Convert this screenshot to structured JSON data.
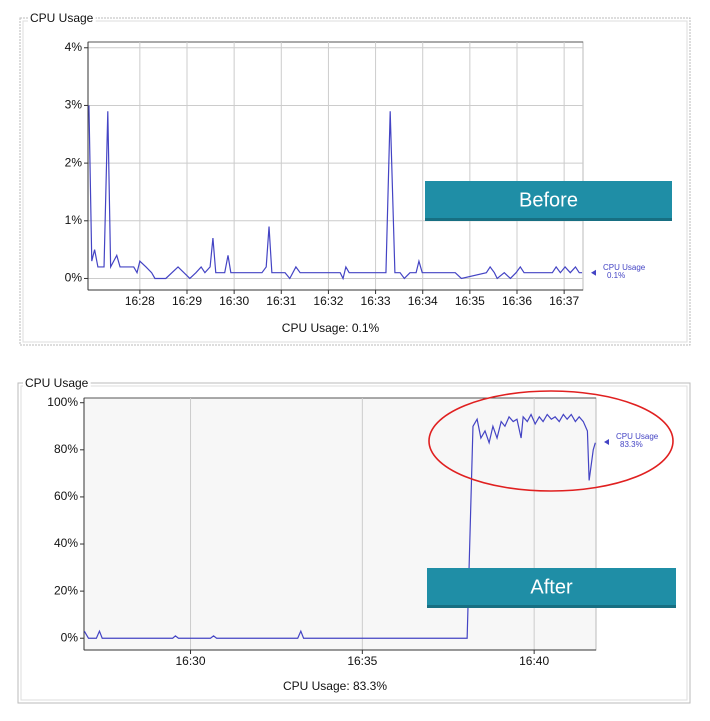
{
  "chart_data": [
    {
      "type": "line",
      "title": "CPU Usage",
      "caption": "CPU Usage: 0.1%",
      "annotation": "Before",
      "x": [
        986.92,
        986.98,
        987.04,
        987.11,
        987.24,
        987.32,
        987.38,
        987.51,
        987.58,
        987.87,
        987.94,
        988.0,
        988.13,
        988.25,
        988.32,
        988.55,
        988.81,
        989.06,
        989.19,
        989.3,
        989.38,
        989.49,
        989.55,
        989.61,
        989.8,
        989.87,
        989.93,
        990.59,
        990.68,
        990.74,
        990.8,
        991.08,
        991.18,
        991.31,
        991.4,
        992.25,
        992.31,
        992.37,
        992.44,
        993.22,
        993.31,
        993.41,
        993.52,
        993.61,
        993.73,
        993.86,
        993.92,
        993.99,
        994.69,
        994.82,
        995.35,
        995.43,
        995.52,
        995.58,
        995.73,
        995.86,
        995.98,
        996.07,
        996.15,
        996.75,
        996.83,
        996.92,
        997.02,
        997.13,
        997.24,
        997.32,
        997.38
      ],
      "series": [
        {
          "name": "CPU Usage",
          "color": "#4444c4",
          "values": [
            3.0,
            0.3,
            0.5,
            0.2,
            0.2,
            2.9,
            0.2,
            0.4,
            0.2,
            0.2,
            0.1,
            0.3,
            0.2,
            0.1,
            0,
            0,
            0.2,
            0,
            0.1,
            0.2,
            0.1,
            0.2,
            0.7,
            0.1,
            0.1,
            0.4,
            0.1,
            0.1,
            0.2,
            0.9,
            0.1,
            0.1,
            0,
            0.2,
            0.1,
            0.1,
            0,
            0.2,
            0.1,
            0.1,
            2.9,
            0.1,
            0.1,
            0,
            0.1,
            0.1,
            0.3,
            0.1,
            0.1,
            0,
            0.1,
            0.2,
            0.1,
            0,
            0.1,
            0,
            0.1,
            0.2,
            0.1,
            0.1,
            0.2,
            0.1,
            0.2,
            0.1,
            0.2,
            0.1,
            0.1
          ]
        }
      ],
      "current": {
        "value": 0.1,
        "label": "0.1%"
      },
      "xlim": [
        986.9,
        997.4
      ],
      "ylim": [
        -0.2,
        4.1
      ],
      "xticks": [
        {
          "value": 988,
          "label": "16:28"
        },
        {
          "value": 989,
          "label": "16:29"
        },
        {
          "value": 990,
          "label": "16:30"
        },
        {
          "value": 991,
          "label": "16:31"
        },
        {
          "value": 992,
          "label": "16:32"
        },
        {
          "value": 993,
          "label": "16:33"
        },
        {
          "value": 994,
          "label": "16:34"
        },
        {
          "value": 995,
          "label": "16:35"
        },
        {
          "value": 996,
          "label": "16:36"
        },
        {
          "value": 997,
          "label": "16:37"
        }
      ],
      "yticks": [
        {
          "value": 0,
          "label": "0%"
        },
        {
          "value": 1,
          "label": "1%"
        },
        {
          "value": 2,
          "label": "2%"
        },
        {
          "value": 3,
          "label": "3%"
        },
        {
          "value": 4,
          "label": "4%"
        }
      ],
      "grid_x": true,
      "grid_y": true
    },
    {
      "type": "line",
      "title": "CPU Usage",
      "caption": "CPU Usage: 83.3%",
      "annotation": "After",
      "x": [
        986.91,
        987.03,
        987.26,
        987.35,
        987.43,
        989.48,
        989.56,
        989.65,
        990.58,
        990.67,
        990.76,
        993.12,
        993.21,
        993.29,
        998.05,
        998.22,
        998.34,
        998.45,
        998.57,
        998.69,
        998.8,
        998.92,
        999.04,
        999.15,
        999.27,
        999.39,
        999.5,
        999.62,
        999.68,
        999.8,
        999.91,
        1000.03,
        1000.15,
        1000.26,
        1000.38,
        1000.5,
        1000.61,
        1000.73,
        1000.85,
        1000.96,
        1001.08,
        1001.2,
        1001.31,
        1001.43,
        1001.55,
        1001.6,
        1001.72,
        1001.78
      ],
      "series": [
        {
          "name": "CPU Usage",
          "color": "#4444c4",
          "values": [
            3,
            0,
            0,
            3,
            0,
            0,
            1,
            0,
            0,
            1,
            0,
            0,
            3,
            0,
            0,
            90,
            93,
            85,
            88,
            83,
            90,
            85,
            92,
            90,
            94,
            92,
            93,
            85,
            94,
            92,
            95,
            91,
            94,
            92,
            95,
            93,
            94,
            92,
            95,
            93,
            95,
            92,
            94,
            92,
            88,
            67,
            80,
            83
          ]
        }
      ],
      "current": {
        "value": 83.3,
        "label": "83.3%"
      },
      "xlim": [
        986.9,
        1001.8
      ],
      "ylim": [
        -5,
        102
      ],
      "xticks": [
        {
          "value": 990,
          "label": "16:30"
        },
        {
          "value": 995,
          "label": "16:35"
        },
        {
          "value": 1000,
          "label": "16:40"
        }
      ],
      "yticks": [
        {
          "value": 0,
          "label": "0%"
        },
        {
          "value": 20,
          "label": "20%"
        },
        {
          "value": 40,
          "label": "40%"
        },
        {
          "value": 60,
          "label": "60%"
        },
        {
          "value": 80,
          "label": "80%"
        },
        {
          "value": 100,
          "label": "100%"
        }
      ],
      "grid_x": true,
      "grid_y": false
    }
  ]
}
